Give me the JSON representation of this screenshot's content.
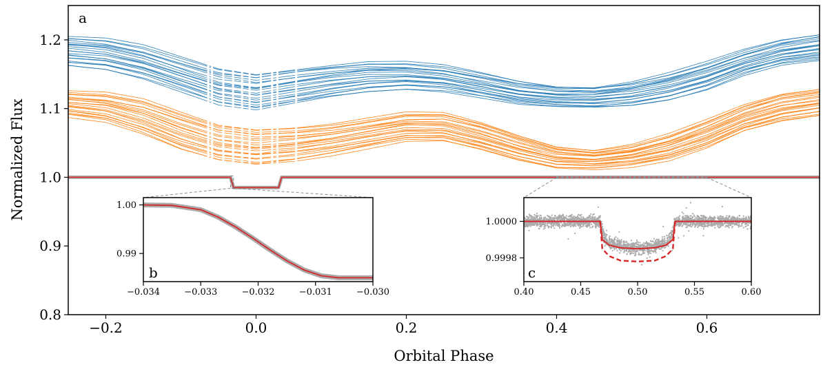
{
  "chart_data": [
    {
      "panel": "a",
      "type": "scatter",
      "xlabel": "Orbital Phase",
      "ylabel": "Normalized Flux",
      "xlim": [
        -0.25,
        0.75
      ],
      "ylim": [
        0.8,
        1.25
      ],
      "xticks": [
        -0.2,
        0.0,
        0.2,
        0.4,
        0.6
      ],
      "yticks": [
        0.8,
        0.9,
        1.0,
        1.1,
        1.2
      ],
      "xtick_labels": [
        "−0.2",
        "0.0",
        "0.2",
        "0.4",
        "0.6"
      ],
      "ytick_labels": [
        "0.8",
        "0.9",
        "1.0",
        "1.1",
        "1.2"
      ],
      "grid": false,
      "series": [
        {
          "color": "#1f77b4",
          "kind": "band",
          "x": [
            -0.25,
            -0.2,
            -0.15,
            -0.1,
            -0.05,
            0.0,
            0.05,
            0.1,
            0.15,
            0.2,
            0.25,
            0.3,
            0.35,
            0.4,
            0.45,
            0.5,
            0.55,
            0.6,
            0.65,
            0.7,
            0.75
          ],
          "upper": [
            1.205,
            1.202,
            1.192,
            1.175,
            1.158,
            1.15,
            1.157,
            1.163,
            1.168,
            1.168,
            1.163,
            1.152,
            1.14,
            1.132,
            1.131,
            1.139,
            1.152,
            1.168,
            1.186,
            1.2,
            1.208
          ],
          "lower": [
            1.163,
            1.157,
            1.143,
            1.124,
            1.105,
            1.098,
            1.108,
            1.118,
            1.125,
            1.128,
            1.124,
            1.115,
            1.106,
            1.103,
            1.102,
            1.105,
            1.113,
            1.127,
            1.148,
            1.163,
            1.17
          ]
        },
        {
          "color": "#ff7f0e",
          "kind": "band",
          "x": [
            -0.25,
            -0.2,
            -0.15,
            -0.1,
            -0.05,
            0.0,
            0.05,
            0.1,
            0.15,
            0.2,
            0.25,
            0.3,
            0.35,
            0.4,
            0.45,
            0.5,
            0.55,
            0.6,
            0.65,
            0.7,
            0.75
          ],
          "upper": [
            1.126,
            1.123,
            1.113,
            1.094,
            1.076,
            1.07,
            1.073,
            1.078,
            1.086,
            1.094,
            1.093,
            1.079,
            1.061,
            1.045,
            1.04,
            1.048,
            1.063,
            1.083,
            1.105,
            1.121,
            1.129
          ],
          "lower": [
            1.088,
            1.08,
            1.062,
            1.04,
            1.025,
            1.019,
            1.024,
            1.032,
            1.042,
            1.052,
            1.052,
            1.04,
            1.025,
            1.014,
            1.012,
            1.015,
            1.024,
            1.042,
            1.067,
            1.082,
            1.09
          ]
        },
        {
          "color": "#aaaaaa",
          "kind": "data",
          "x": [
            -0.25,
            -0.034,
            -0.03,
            0.03,
            0.034,
            0.75
          ],
          "y": [
            1.0,
            1.0,
            0.985,
            0.985,
            1.0,
            1.0
          ]
        },
        {
          "color": "#d62728",
          "kind": "model",
          "x": [
            -0.25,
            -0.034,
            -0.03,
            0.03,
            0.034,
            0.75
          ],
          "y": [
            1.0,
            1.0,
            0.985,
            0.985,
            1.0,
            1.0
          ]
        }
      ],
      "inset_connector_regions": [
        {
          "x": [
            -0.034,
            -0.03
          ],
          "y": [
            0.984,
            1.002
          ]
        },
        {
          "x": [
            0.4,
            0.6
          ],
          "y": [
            0.9997,
            1.0006
          ]
        }
      ]
    },
    {
      "panel": "b",
      "type": "line",
      "xlim": [
        -0.034,
        -0.03
      ],
      "ylim": [
        0.9842,
        1.0015
      ],
      "xticks": [
        -0.034,
        -0.033,
        -0.032,
        -0.031,
        -0.03
      ],
      "yticks": [
        0.99,
        1.0
      ],
      "xtick_labels": [
        "−0.034",
        "−0.033",
        "−0.032",
        "−0.031",
        "−0.030"
      ],
      "ytick_labels": [
        "0.99",
        "1.00"
      ],
      "series": [
        {
          "color": "#aaaaaa",
          "kind": "data",
          "x": [
            -0.034,
            -0.0335,
            -0.033,
            -0.0327,
            -0.0324,
            -0.0321,
            -0.0318,
            -0.0315,
            -0.0312,
            -0.0309,
            -0.0306,
            -0.0303,
            -0.03
          ],
          "y": [
            1.0,
            0.9999,
            0.999,
            0.9975,
            0.9955,
            0.9932,
            0.9908,
            0.9885,
            0.9866,
            0.9854,
            0.985,
            0.985,
            0.985
          ]
        },
        {
          "color": "#d62728",
          "kind": "model",
          "x": [
            -0.034,
            -0.0335,
            -0.033,
            -0.0327,
            -0.0324,
            -0.0321,
            -0.0318,
            -0.0315,
            -0.0312,
            -0.0309,
            -0.0306,
            -0.0303,
            -0.03
          ],
          "y": [
            1.0,
            0.9999,
            0.999,
            0.9975,
            0.9955,
            0.9932,
            0.9908,
            0.9885,
            0.9866,
            0.9854,
            0.985,
            0.985,
            0.985
          ]
        }
      ]
    },
    {
      "panel": "c",
      "type": "scatter",
      "xlim": [
        0.4,
        0.6
      ],
      "ylim": [
        0.99967,
        1.00013
      ],
      "xticks": [
        0.4,
        0.45,
        0.5,
        0.55,
        0.6
      ],
      "yticks": [
        0.9998,
        1.0
      ],
      "xtick_labels": [
        "0.40",
        "0.45",
        "0.50",
        "0.55",
        "0.60"
      ],
      "ytick_labels": [
        "0.9998",
        "1.0000"
      ],
      "series": [
        {
          "color": "#aaaaaa",
          "kind": "data",
          "x": [
            0.4,
            0.467,
            0.47,
            0.475,
            0.49,
            0.5,
            0.51,
            0.525,
            0.53,
            0.533,
            0.6
          ],
          "y": [
            1.0,
            1.0,
            0.99992,
            0.99988,
            0.99986,
            0.99985,
            0.99986,
            0.99988,
            0.99992,
            1.0,
            1.0
          ]
        },
        {
          "color": "#d62728",
          "kind": "model",
          "style": "solid",
          "x": [
            0.4,
            0.467,
            0.469,
            0.475,
            0.485,
            0.5,
            0.515,
            0.525,
            0.531,
            0.533,
            0.6
          ],
          "y": [
            1.0,
            1.0,
            0.9999,
            0.99987,
            0.999855,
            0.99985,
            0.999855,
            0.99987,
            0.9999,
            1.0,
            1.0
          ]
        },
        {
          "color": "#d62728",
          "kind": "model",
          "style": "dashed",
          "x": [
            0.467,
            0.469,
            0.475,
            0.485,
            0.5,
            0.515,
            0.525,
            0.531,
            0.533
          ],
          "y": [
            1.0,
            0.99985,
            0.99981,
            0.999785,
            0.99978,
            0.999785,
            0.99981,
            0.99985,
            1.0
          ]
        }
      ]
    }
  ]
}
